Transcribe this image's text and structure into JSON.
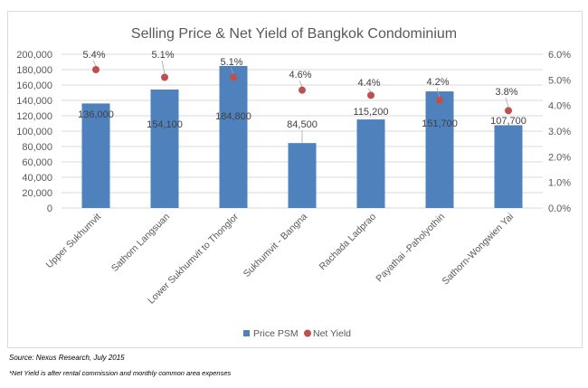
{
  "chart_data": {
    "type": "bar",
    "title": "Selling Price & Net Yield of Bangkok Condominium",
    "categories": [
      "Upper Sukhumvit",
      "Sathorn Langsuan",
      "Lower Sukhumvit to Thonglor",
      "Sukhumvit - Bangna",
      "Rachada Ladprao",
      "Payathai -Paholyothin",
      "Sathorn-Wongwien Yai"
    ],
    "series": [
      {
        "name": "Price PSM",
        "type": "bar",
        "axis": "left",
        "values": [
          136000,
          154100,
          184800,
          84500,
          115200,
          151700,
          107700
        ],
        "labels": [
          "136,000",
          "154,100",
          "184,800",
          "84,500",
          "115,200",
          "151,700",
          "107,700"
        ],
        "color": "#4f81bd"
      },
      {
        "name": "Net Yield",
        "type": "scatter",
        "axis": "right",
        "values": [
          5.4,
          5.1,
          5.1,
          4.6,
          4.4,
          4.2,
          3.8
        ],
        "labels": [
          "5.4%",
          "5.1%",
          "5.1%",
          "4.6%",
          "4.4%",
          "4.2%",
          "3.8%"
        ],
        "color": "#c0504d"
      }
    ],
    "y_left": {
      "range": [
        0,
        200000
      ],
      "ticks": [
        "0",
        "20,000",
        "40,000",
        "60,000",
        "80,000",
        "100,000",
        "120,000",
        "140,000",
        "160,000",
        "180,000",
        "200,000"
      ]
    },
    "y_right": {
      "range": [
        0,
        6
      ],
      "ticks": [
        "0.0%",
        "1.0%",
        "2.0%",
        "3.0%",
        "4.0%",
        "5.0%",
        "6.0%"
      ]
    },
    "grid": true,
    "legend": "bottom"
  },
  "footer": {
    "source": "Source: Nexus Research, July 2015",
    "note": "*Net Yield is after rental commission and monthly common area expenses"
  }
}
